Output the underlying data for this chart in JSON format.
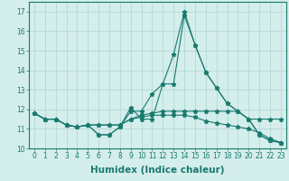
{
  "xlabel": "Humidex (Indice chaleur)",
  "ylabel": "",
  "background_color": "#d4eeec",
  "grid_color": "#aed4d2",
  "line_color": "#1a7a6e",
  "x_values": [
    0,
    1,
    2,
    3,
    4,
    5,
    6,
    7,
    8,
    9,
    10,
    11,
    12,
    13,
    14,
    15,
    16,
    17,
    18,
    19,
    20,
    21,
    22,
    23
  ],
  "series": [
    [
      11.8,
      11.5,
      11.5,
      11.2,
      11.1,
      11.2,
      10.7,
      10.7,
      11.1,
      12.1,
      11.5,
      11.5,
      13.3,
      13.3,
      16.8,
      15.3,
      13.9,
      13.1,
      12.3,
      11.9,
      11.5,
      10.7,
      10.4,
      10.3
    ],
    [
      11.8,
      11.5,
      11.5,
      11.2,
      11.1,
      11.2,
      10.7,
      10.7,
      11.1,
      11.9,
      11.9,
      12.8,
      13.3,
      14.8,
      17.0,
      15.3,
      13.9,
      13.1,
      12.3,
      11.9,
      11.5,
      10.7,
      10.4,
      10.3
    ],
    [
      11.8,
      11.5,
      11.5,
      11.2,
      11.1,
      11.2,
      11.2,
      11.2,
      11.2,
      11.5,
      11.7,
      11.8,
      11.9,
      11.9,
      11.9,
      11.9,
      11.9,
      11.9,
      11.9,
      11.9,
      11.5,
      11.5,
      11.5,
      11.5
    ],
    [
      11.8,
      11.5,
      11.5,
      11.2,
      11.1,
      11.2,
      11.2,
      11.2,
      11.2,
      11.5,
      11.6,
      11.7,
      11.7,
      11.7,
      11.7,
      11.6,
      11.4,
      11.3,
      11.2,
      11.1,
      11.0,
      10.8,
      10.5,
      10.3
    ]
  ],
  "ylim": [
    10.0,
    17.5
  ],
  "yticks": [
    10,
    11,
    12,
    13,
    14,
    15,
    16,
    17
  ],
  "xlim": [
    -0.5,
    23.5
  ],
  "xticks": [
    0,
    1,
    2,
    3,
    4,
    5,
    6,
    7,
    8,
    9,
    10,
    11,
    12,
    13,
    14,
    15,
    16,
    17,
    18,
    19,
    20,
    21,
    22,
    23
  ],
  "marker": "*",
  "markersize": 3.5,
  "linewidth": 0.8,
  "tick_fontsize": 5.5,
  "xlabel_fontsize": 7.5,
  "fig_width": 3.2,
  "fig_height": 2.0,
  "dpi": 100
}
